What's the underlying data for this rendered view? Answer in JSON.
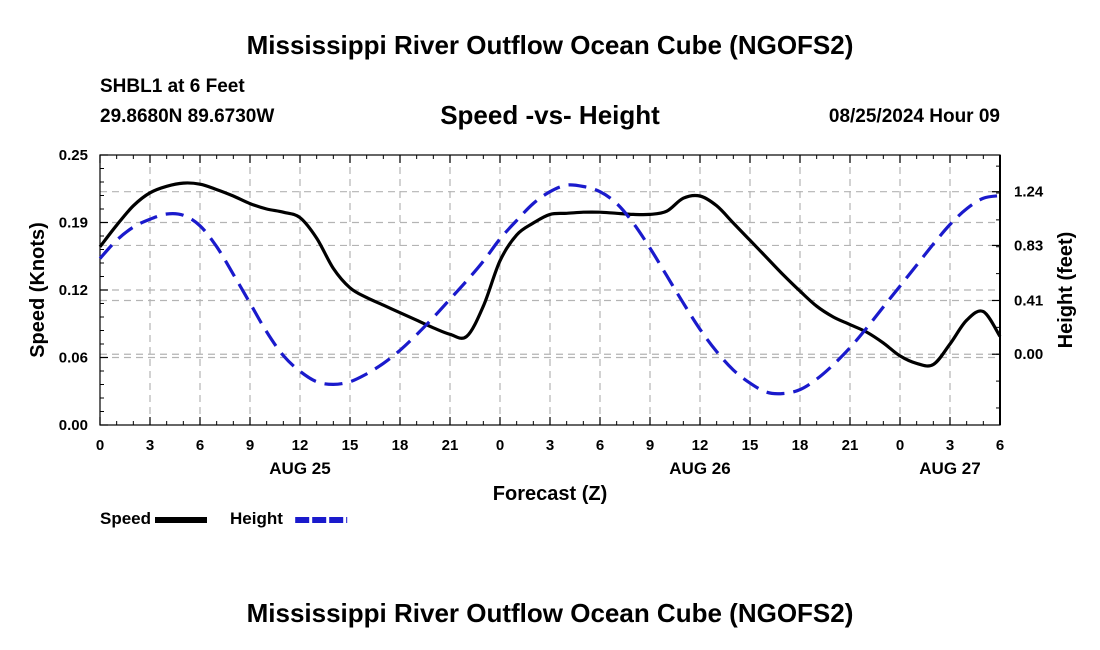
{
  "header": {
    "title": "Mississippi River Outflow Ocean Cube (NGOFS2)",
    "station": "SHBL1 at 6 Feet",
    "coords": "29.8680N  89.6730W",
    "subtitle": "Speed -vs- Height",
    "datetime": "08/25/2024 Hour 09"
  },
  "footer": {
    "title": "Mississippi River Outflow Ocean Cube (NGOFS2)"
  },
  "colors": {
    "speed": "#000000",
    "height": "#1a1acc",
    "grid": "#b4b4b4"
  },
  "chart_data": {
    "type": "line",
    "xlabel": "Forecast (Z)",
    "ylabel": "Speed (Knots)",
    "y2label": "Height (feet)",
    "x_range_hours": [
      0,
      54
    ],
    "x_tick_hours": [
      0,
      3,
      6,
      9,
      12,
      15,
      18,
      21,
      24,
      27,
      30,
      33,
      36,
      39,
      42,
      45,
      48,
      51,
      54
    ],
    "x_tick_labels": [
      "0",
      "3",
      "6",
      "9",
      "12",
      "15",
      "18",
      "21",
      "0",
      "3",
      "6",
      "9",
      "12",
      "15",
      "18",
      "21",
      "0",
      "3",
      "6"
    ],
    "date_labels": [
      {
        "hour": 12,
        "label": "AUG 25"
      },
      {
        "hour": 36,
        "label": "AUG 26"
      },
      {
        "hour": 51,
        "label": "AUG 27"
      }
    ],
    "ylim": [
      0.0,
      0.25
    ],
    "y_ticks": [
      0.0,
      0.0625,
      0.125,
      0.1875,
      0.25
    ],
    "y_tick_labels": [
      "0.00",
      "0.06",
      "0.12",
      "0.19",
      "0.25"
    ],
    "y2lim": [
      -0.54,
      1.52
    ],
    "y2_ticks": [
      0.0,
      0.41,
      0.83,
      1.24
    ],
    "y2_tick_labels": [
      "0.00",
      "0.41",
      "0.83",
      "1.24"
    ],
    "legend_position": "bottom-left",
    "series": [
      {
        "name": "Speed",
        "axis": "left",
        "style": "solid",
        "x": [
          0,
          1,
          2,
          3,
          4,
          5,
          6,
          7,
          8,
          9,
          10,
          11,
          12,
          13,
          14,
          15,
          16,
          17,
          18,
          19,
          20,
          21,
          22,
          23,
          24,
          25,
          26,
          27,
          28,
          29,
          30,
          31,
          32,
          33,
          34,
          35,
          36,
          37,
          38,
          39,
          40,
          41,
          42,
          43,
          44,
          45,
          46,
          47,
          48,
          49,
          50,
          51,
          52,
          53,
          54
        ],
        "values": [
          0.165,
          0.185,
          0.203,
          0.215,
          0.221,
          0.224,
          0.223,
          0.218,
          0.212,
          0.205,
          0.2,
          0.197,
          0.192,
          0.173,
          0.145,
          0.127,
          0.118,
          0.111,
          0.104,
          0.097,
          0.09,
          0.084,
          0.082,
          0.11,
          0.152,
          0.176,
          0.187,
          0.195,
          0.196,
          0.197,
          0.197,
          0.196,
          0.195,
          0.195,
          0.198,
          0.21,
          0.212,
          0.203,
          0.187,
          0.171,
          0.155,
          0.139,
          0.124,
          0.11,
          0.1,
          0.093,
          0.086,
          0.076,
          0.064,
          0.057,
          0.056,
          0.075,
          0.097,
          0.105,
          0.082
        ]
      },
      {
        "name": "Height",
        "axis": "right",
        "style": "dashed",
        "x": [
          0,
          1,
          2,
          3,
          4,
          5,
          6,
          7,
          8,
          9,
          10,
          11,
          12,
          13,
          14,
          15,
          16,
          17,
          18,
          19,
          20,
          21,
          22,
          23,
          24,
          25,
          26,
          27,
          28,
          29,
          30,
          31,
          32,
          33,
          34,
          35,
          36,
          37,
          38,
          39,
          40,
          41,
          42,
          43,
          44,
          45,
          46,
          47,
          48,
          49,
          50,
          51,
          52,
          53,
          54
        ],
        "values": [
          0.73,
          0.87,
          0.97,
          1.03,
          1.07,
          1.06,
          0.98,
          0.82,
          0.61,
          0.39,
          0.17,
          -0.01,
          -0.13,
          -0.21,
          -0.23,
          -0.21,
          -0.15,
          -0.07,
          0.03,
          0.15,
          0.28,
          0.42,
          0.56,
          0.71,
          0.88,
          1.02,
          1.15,
          1.24,
          1.29,
          1.28,
          1.24,
          1.15,
          1.0,
          0.81,
          0.6,
          0.39,
          0.19,
          0.02,
          -0.12,
          -0.22,
          -0.29,
          -0.3,
          -0.27,
          -0.19,
          -0.08,
          0.05,
          0.2,
          0.36,
          0.52,
          0.68,
          0.84,
          0.99,
          1.11,
          1.19,
          1.21
        ]
      }
    ]
  }
}
